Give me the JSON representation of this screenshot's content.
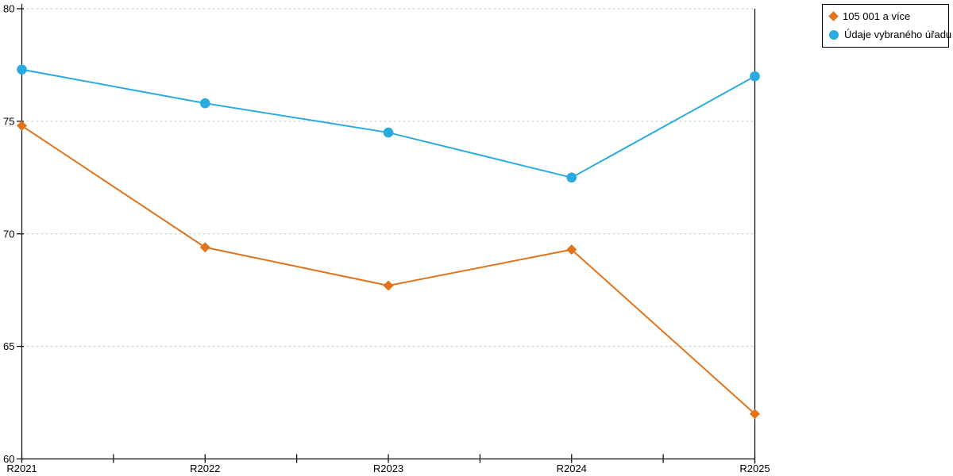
{
  "legend": {
    "entries": [
      {
        "label": "105 001 a více",
        "marker": "diamond",
        "color": "#e2731b"
      },
      {
        "label": "Údaje vybraného úřadu",
        "marker": "circle",
        "color": "#29abe2"
      }
    ]
  },
  "chart_data": {
    "type": "line",
    "categories": [
      "R2021",
      "R2022",
      "R2023",
      "R2024",
      "R2025"
    ],
    "series": [
      {
        "name": "105 001 a více",
        "marker": "diamond",
        "color": "#e2731b",
        "values": [
          74.8,
          69.4,
          67.7,
          69.3,
          62.0
        ]
      },
      {
        "name": "Údaje vybraného úřadu",
        "marker": "circle",
        "color": "#29abe2",
        "values": [
          77.3,
          75.8,
          74.5,
          72.5,
          77.0
        ]
      }
    ],
    "title": "",
    "xlabel": "",
    "ylabel": "",
    "ylim": [
      60,
      80
    ],
    "yticks": [
      60,
      65,
      70,
      75,
      80
    ],
    "grid": "horizontal-dashed",
    "gridline_color": "#c8c8c8",
    "axis_color": "#000000",
    "legend_position": "top-right"
  }
}
